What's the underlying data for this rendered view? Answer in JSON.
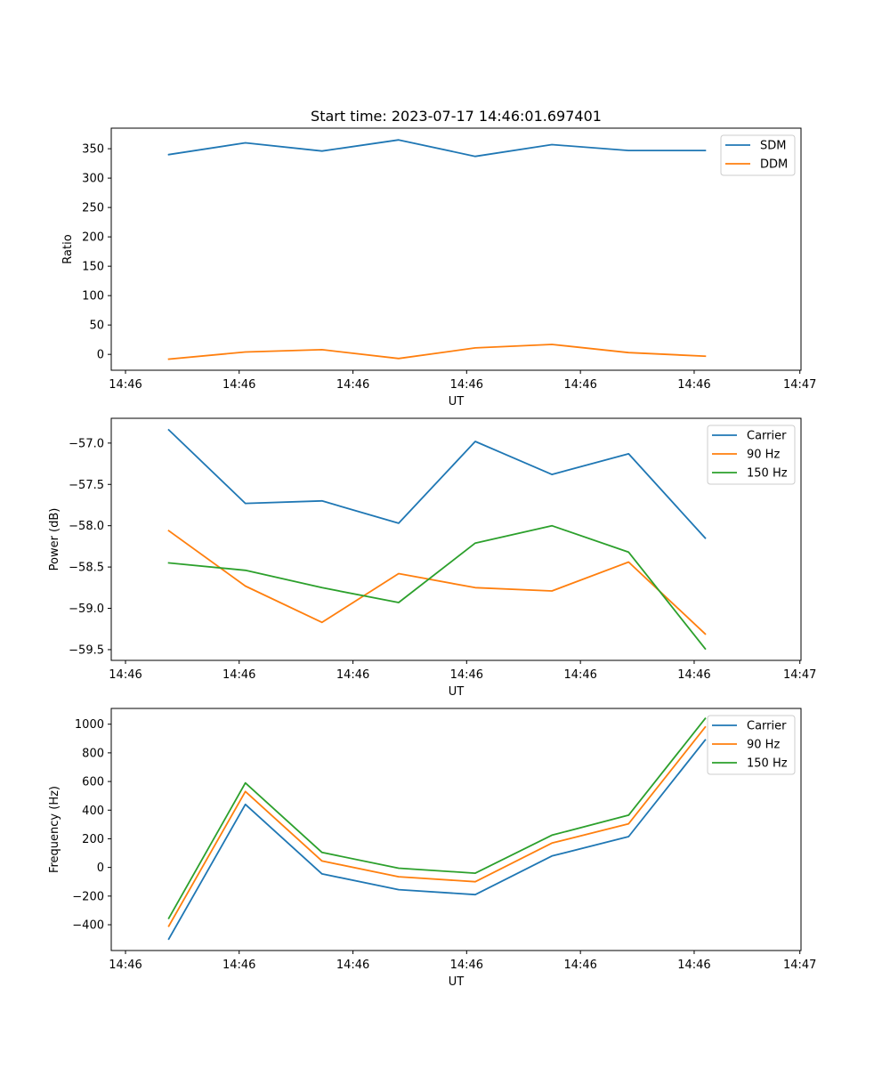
{
  "chart_data": [
    {
      "type": "line",
      "title": "Start time: 2023-07-17 14:46:01.697401",
      "xlabel": "UT",
      "ylabel": "Ratio",
      "x": [
        1,
        2,
        3,
        4,
        5,
        6,
        7,
        8
      ],
      "xlim": [
        0.25,
        9.25
      ],
      "x_ticks": [
        0.436,
        1.919,
        3.404,
        4.887,
        6.372,
        7.856,
        9.235
      ],
      "x_tick_labels": [
        "14:46",
        "14:46",
        "14:46",
        "14:46",
        "14:46",
        "14:46",
        "14:47"
      ],
      "ylim": [
        -27,
        385
      ],
      "y_ticks": [
        0,
        50,
        100,
        150,
        200,
        250,
        300,
        350
      ],
      "y_tick_labels": [
        "0",
        "50",
        "100",
        "150",
        "200",
        "250",
        "300",
        "350"
      ],
      "legend": "top-right",
      "series": [
        {
          "name": "SDM",
          "color": "#1f77b4",
          "values": [
            340,
            360,
            346,
            365,
            337,
            357,
            347,
            347
          ]
        },
        {
          "name": "DDM",
          "color": "#ff7f0e",
          "values": [
            -8,
            4,
            8,
            -7,
            11,
            17,
            3,
            -3
          ]
        }
      ]
    },
    {
      "type": "line",
      "title": "",
      "xlabel": "UT",
      "ylabel": "Power (dB)",
      "x": [
        1,
        2,
        3,
        4,
        5,
        6,
        7,
        8
      ],
      "xlim": [
        0.25,
        9.25
      ],
      "x_ticks": [
        0.436,
        1.919,
        3.404,
        4.887,
        6.372,
        7.856,
        9.235
      ],
      "x_tick_labels": [
        "14:46",
        "14:46",
        "14:46",
        "14:46",
        "14:46",
        "14:46",
        "14:47"
      ],
      "ylim": [
        -59.63,
        -56.7
      ],
      "y_ticks": [
        -59.5,
        -59.0,
        -58.5,
        -58.0,
        -57.5,
        -57.0
      ],
      "y_tick_labels": [
        "−59.5",
        "−59.0",
        "−58.5",
        "−58.0",
        "−57.5",
        "−57.0"
      ],
      "legend": "top-right",
      "series": [
        {
          "name": "Carrier",
          "color": "#1f77b4",
          "values": [
            -56.84,
            -57.73,
            -57.7,
            -57.97,
            -56.98,
            -57.38,
            -57.13,
            -58.15
          ]
        },
        {
          "name": "90 Hz",
          "color": "#ff7f0e",
          "values": [
            -58.06,
            -58.73,
            -59.17,
            -58.58,
            -58.75,
            -58.79,
            -58.44,
            -59.31
          ]
        },
        {
          "name": "150 Hz",
          "color": "#2ca02c",
          "values": [
            -58.45,
            -58.54,
            -58.75,
            -58.93,
            -58.21,
            -58.0,
            -58.32,
            -59.49
          ]
        }
      ]
    },
    {
      "type": "line",
      "title": "",
      "xlabel": "UT",
      "ylabel": "Frequency (Hz)",
      "x": [
        1,
        2,
        3,
        4,
        5,
        6,
        7,
        8
      ],
      "xlim": [
        0.25,
        9.25
      ],
      "x_ticks": [
        0.436,
        1.919,
        3.404,
        4.887,
        6.372,
        7.856,
        9.235
      ],
      "x_tick_labels": [
        "14:46",
        "14:46",
        "14:46",
        "14:46",
        "14:46",
        "14:46",
        "14:47"
      ],
      "ylim": [
        -580,
        1110
      ],
      "y_ticks": [
        -400,
        -200,
        0,
        200,
        400,
        600,
        800,
        1000
      ],
      "y_tick_labels": [
        "−400",
        "−200",
        "0",
        "200",
        "400",
        "600",
        "800",
        "1000"
      ],
      "legend": "top-right",
      "series": [
        {
          "name": "Carrier",
          "color": "#1f77b4",
          "values": [
            -500,
            440,
            -45,
            -155,
            -190,
            80,
            215,
            890
          ]
        },
        {
          "name": "90 Hz",
          "color": "#ff7f0e",
          "values": [
            -410,
            530,
            45,
            -65,
            -100,
            170,
            305,
            980
          ]
        },
        {
          "name": "150 Hz",
          "color": "#2ca02c",
          "values": [
            -355,
            590,
            105,
            -5,
            -40,
            225,
            365,
            1040
          ]
        }
      ]
    }
  ]
}
